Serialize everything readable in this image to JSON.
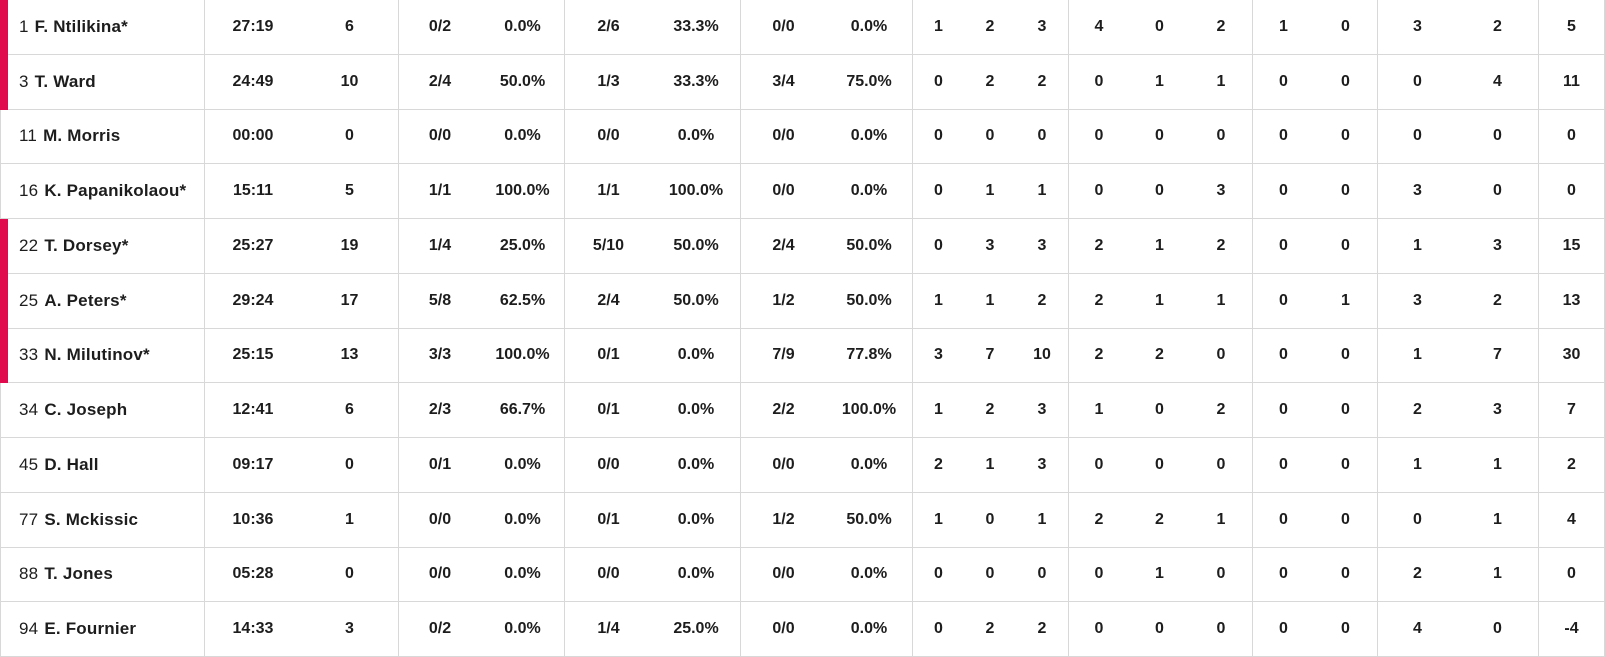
{
  "theme": {
    "accent_color": "#e00a4f",
    "border_color": "#d8d8d8",
    "text_color": "#1d1d1d"
  },
  "table": {
    "starter_marker": "*",
    "rows": [
      {
        "number": "1",
        "display_name": "F. Ntilikina*",
        "on_court": true,
        "min": "27:19",
        "pts": "6",
        "fg2": "0/2",
        "fg2_pct": "0.0%",
        "fg3": "2/6",
        "fg3_pct": "33.3%",
        "ft": "0/0",
        "ft_pct": "0.0%",
        "oreb": "1",
        "dreb": "2",
        "reb": "3",
        "ast": "4",
        "stl": "0",
        "tov": "2",
        "blk": "1",
        "blka": "0",
        "pf": "3",
        "fd": "2",
        "pir": "5"
      },
      {
        "number": "3",
        "display_name": "T. Ward",
        "on_court": true,
        "min": "24:49",
        "pts": "10",
        "fg2": "2/4",
        "fg2_pct": "50.0%",
        "fg3": "1/3",
        "fg3_pct": "33.3%",
        "ft": "3/4",
        "ft_pct": "75.0%",
        "oreb": "0",
        "dreb": "2",
        "reb": "2",
        "ast": "0",
        "stl": "1",
        "tov": "1",
        "blk": "0",
        "blka": "0",
        "pf": "0",
        "fd": "4",
        "pir": "11"
      },
      {
        "number": "11",
        "display_name": "M. Morris",
        "on_court": false,
        "min": "00:00",
        "pts": "0",
        "fg2": "0/0",
        "fg2_pct": "0.0%",
        "fg3": "0/0",
        "fg3_pct": "0.0%",
        "ft": "0/0",
        "ft_pct": "0.0%",
        "oreb": "0",
        "dreb": "0",
        "reb": "0",
        "ast": "0",
        "stl": "0",
        "tov": "0",
        "blk": "0",
        "blka": "0",
        "pf": "0",
        "fd": "0",
        "pir": "0"
      },
      {
        "number": "16",
        "display_name": "K. Papanikolaou*",
        "on_court": false,
        "min": "15:11",
        "pts": "5",
        "fg2": "1/1",
        "fg2_pct": "100.0%",
        "fg3": "1/1",
        "fg3_pct": "100.0%",
        "ft": "0/0",
        "ft_pct": "0.0%",
        "oreb": "0",
        "dreb": "1",
        "reb": "1",
        "ast": "0",
        "stl": "0",
        "tov": "3",
        "blk": "0",
        "blka": "0",
        "pf": "3",
        "fd": "0",
        "pir": "0"
      },
      {
        "number": "22",
        "display_name": "T. Dorsey*",
        "on_court": true,
        "min": "25:27",
        "pts": "19",
        "fg2": "1/4",
        "fg2_pct": "25.0%",
        "fg3": "5/10",
        "fg3_pct": "50.0%",
        "ft": "2/4",
        "ft_pct": "50.0%",
        "oreb": "0",
        "dreb": "3",
        "reb": "3",
        "ast": "2",
        "stl": "1",
        "tov": "2",
        "blk": "0",
        "blka": "0",
        "pf": "1",
        "fd": "3",
        "pir": "15"
      },
      {
        "number": "25",
        "display_name": "A. Peters*",
        "on_court": true,
        "min": "29:24",
        "pts": "17",
        "fg2": "5/8",
        "fg2_pct": "62.5%",
        "fg3": "2/4",
        "fg3_pct": "50.0%",
        "ft": "1/2",
        "ft_pct": "50.0%",
        "oreb": "1",
        "dreb": "1",
        "reb": "2",
        "ast": "2",
        "stl": "1",
        "tov": "1",
        "blk": "0",
        "blka": "1",
        "pf": "3",
        "fd": "2",
        "pir": "13"
      },
      {
        "number": "33",
        "display_name": "N. Milutinov*",
        "on_court": true,
        "min": "25:15",
        "pts": "13",
        "fg2": "3/3",
        "fg2_pct": "100.0%",
        "fg3": "0/1",
        "fg3_pct": "0.0%",
        "ft": "7/9",
        "ft_pct": "77.8%",
        "oreb": "3",
        "dreb": "7",
        "reb": "10",
        "ast": "2",
        "stl": "2",
        "tov": "0",
        "blk": "0",
        "blka": "0",
        "pf": "1",
        "fd": "7",
        "pir": "30"
      },
      {
        "number": "34",
        "display_name": "C. Joseph",
        "on_court": false,
        "min": "12:41",
        "pts": "6",
        "fg2": "2/3",
        "fg2_pct": "66.7%",
        "fg3": "0/1",
        "fg3_pct": "0.0%",
        "ft": "2/2",
        "ft_pct": "100.0%",
        "oreb": "1",
        "dreb": "2",
        "reb": "3",
        "ast": "1",
        "stl": "0",
        "tov": "2",
        "blk": "0",
        "blka": "0",
        "pf": "2",
        "fd": "3",
        "pir": "7"
      },
      {
        "number": "45",
        "display_name": "D. Hall",
        "on_court": false,
        "min": "09:17",
        "pts": "0",
        "fg2": "0/1",
        "fg2_pct": "0.0%",
        "fg3": "0/0",
        "fg3_pct": "0.0%",
        "ft": "0/0",
        "ft_pct": "0.0%",
        "oreb": "2",
        "dreb": "1",
        "reb": "3",
        "ast": "0",
        "stl": "0",
        "tov": "0",
        "blk": "0",
        "blka": "0",
        "pf": "1",
        "fd": "1",
        "pir": "2"
      },
      {
        "number": "77",
        "display_name": "S. Mckissic",
        "on_court": false,
        "min": "10:36",
        "pts": "1",
        "fg2": "0/0",
        "fg2_pct": "0.0%",
        "fg3": "0/1",
        "fg3_pct": "0.0%",
        "ft": "1/2",
        "ft_pct": "50.0%",
        "oreb": "1",
        "dreb": "0",
        "reb": "1",
        "ast": "2",
        "stl": "2",
        "tov": "1",
        "blk": "0",
        "blka": "0",
        "pf": "0",
        "fd": "1",
        "pir": "4"
      },
      {
        "number": "88",
        "display_name": "T. Jones",
        "on_court": false,
        "min": "05:28",
        "pts": "0",
        "fg2": "0/0",
        "fg2_pct": "0.0%",
        "fg3": "0/0",
        "fg3_pct": "0.0%",
        "ft": "0/0",
        "ft_pct": "0.0%",
        "oreb": "0",
        "dreb": "0",
        "reb": "0",
        "ast": "0",
        "stl": "1",
        "tov": "0",
        "blk": "0",
        "blka": "0",
        "pf": "2",
        "fd": "1",
        "pir": "0"
      },
      {
        "number": "94",
        "display_name": "E. Fournier",
        "on_court": false,
        "min": "14:33",
        "pts": "3",
        "fg2": "0/2",
        "fg2_pct": "0.0%",
        "fg3": "1/4",
        "fg3_pct": "25.0%",
        "ft": "0/0",
        "ft_pct": "0.0%",
        "oreb": "0",
        "dreb": "2",
        "reb": "2",
        "ast": "0",
        "stl": "0",
        "tov": "0",
        "blk": "0",
        "blka": "0",
        "pf": "4",
        "fd": "0",
        "pir": "-4"
      }
    ]
  }
}
